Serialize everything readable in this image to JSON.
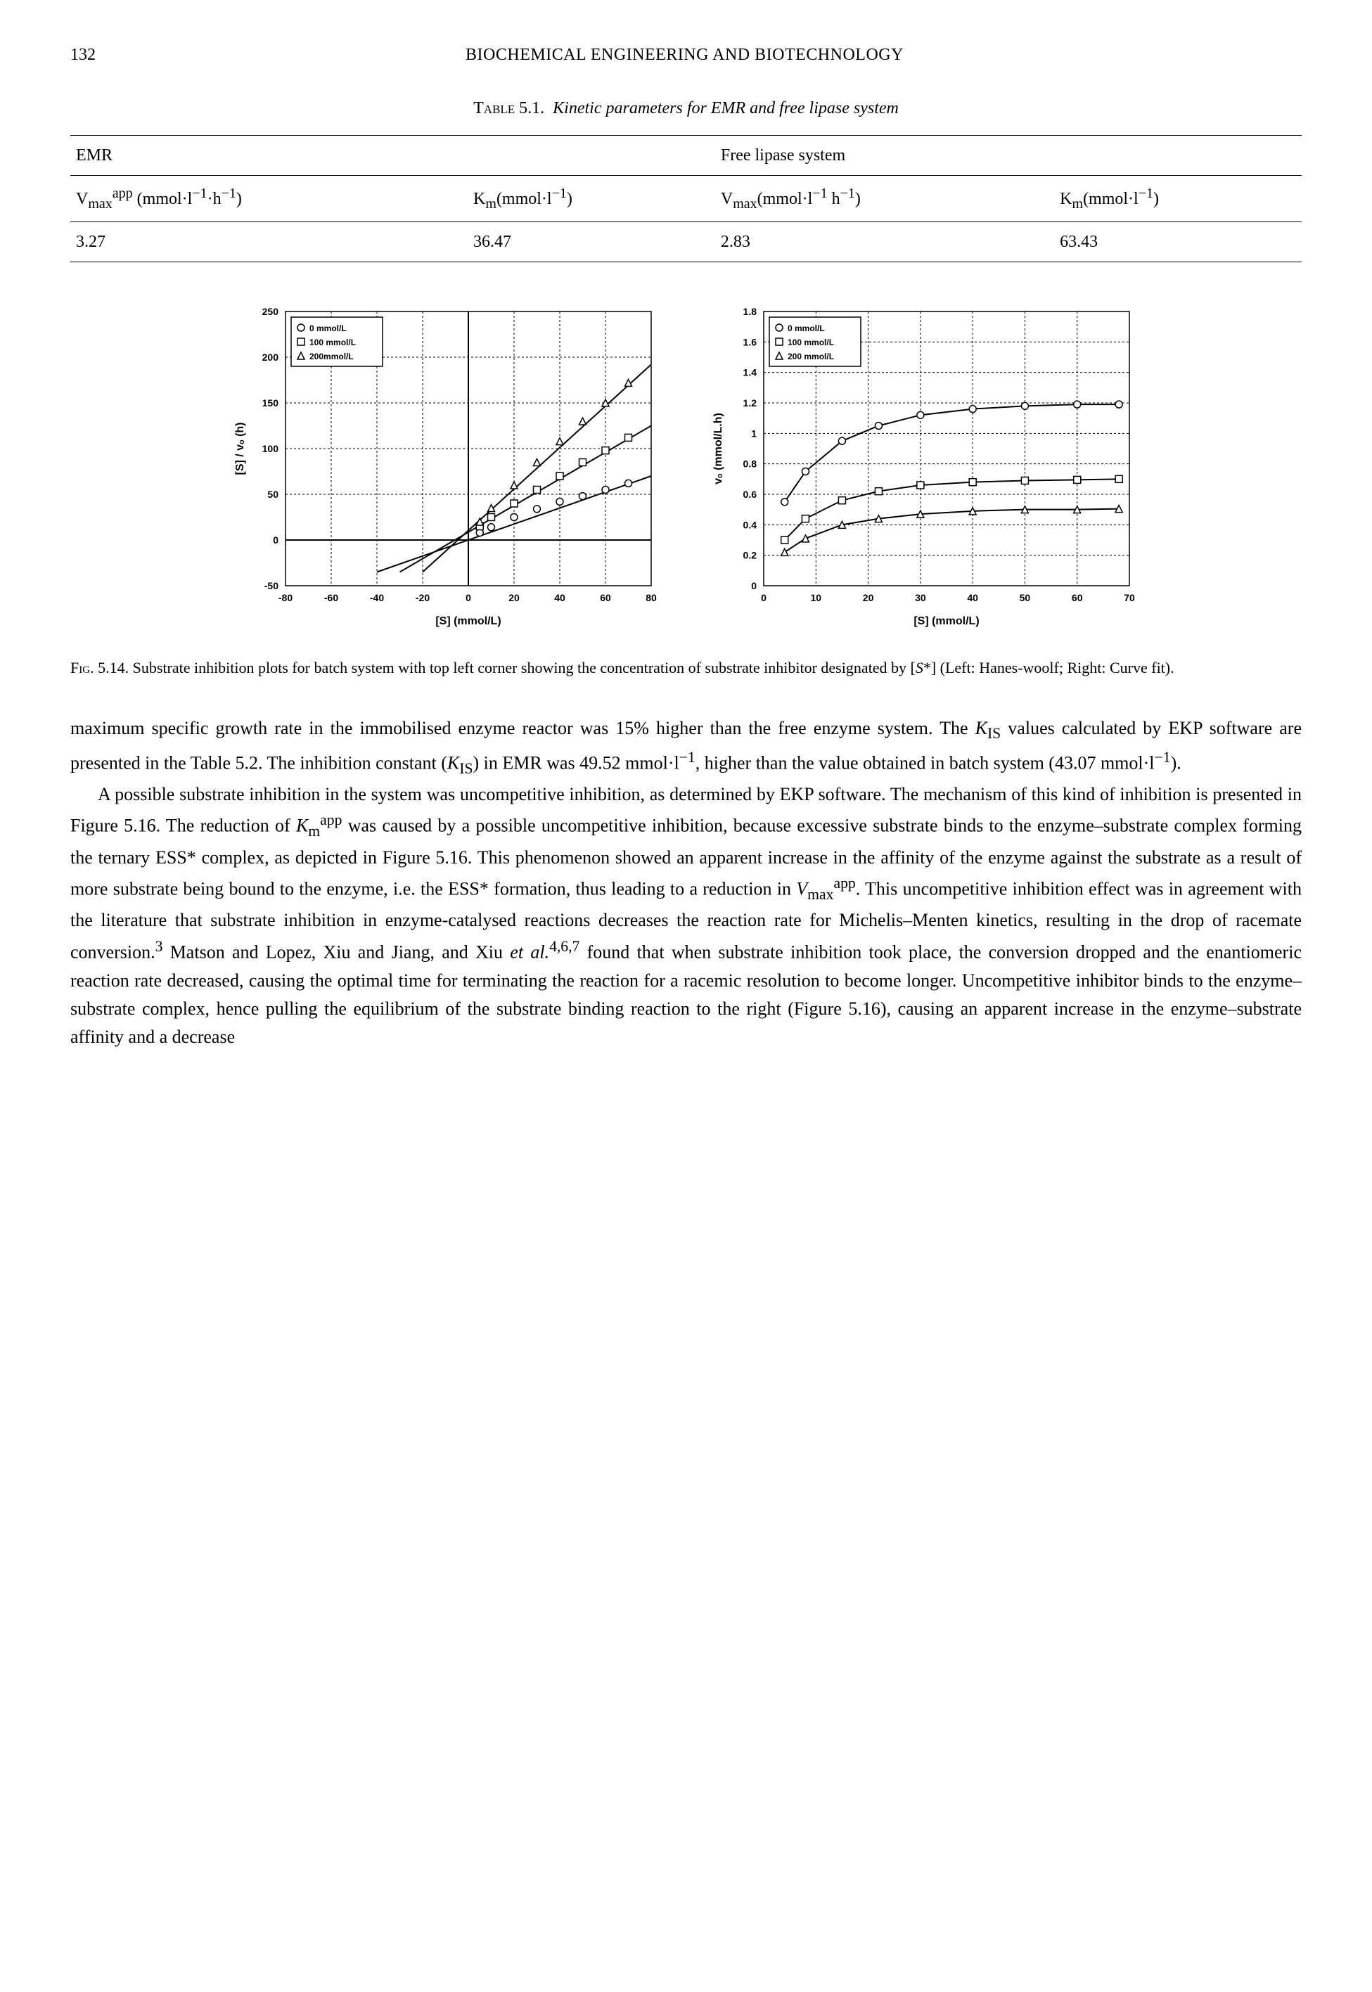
{
  "page_number": "132",
  "running_title": "BIOCHEMICAL ENGINEERING AND BIOTECHNOLOGY",
  "table": {
    "caption_prefix": "Table 5.1.",
    "caption_text": "Kinetic parameters for EMR and free lipase system",
    "group_headers": [
      "EMR",
      "Free lipase system"
    ],
    "col_headers_html": [
      "V<sub>max</sub><sup>app</sup> (mmol·l<sup>−1</sup>·h<sup>−1</sup>)",
      "K<sub>m</sub>(mmol·l<sup>−1</sup>)",
      "V<sub>max</sub>(mmol·l<sup>−1</sup> h<sup>−1</sup>)",
      "K<sub>m</sub>(mmol·l<sup>−1</sup>)"
    ],
    "data_row": [
      "3.27",
      "36.47",
      "2.83",
      "63.43"
    ]
  },
  "figure_caption_html": "F<span style='font-variant:small-caps'>ig</span>. 5.14.  Substrate inhibition plots for batch system with top left corner showing the concentration of substrate inhibitor designated by [<i>S</i>*] (Left: Hanes-woolf; Right: Curve fit).",
  "left_chart": {
    "type": "scatter-line",
    "xlabel": "[S] (mmol/L)",
    "ylabel": "[S] / vₒ (h)",
    "xlim": [
      -80,
      80
    ],
    "xtick_step": 20,
    "ylim": [
      -50,
      250
    ],
    "ytick_step": 50,
    "grid_color": "#000000",
    "grid_dash": "3,3",
    "background_color": "#ffffff",
    "fontsize_axis": 14,
    "fontsize_legend": 12,
    "legend_items": [
      {
        "marker": "circle",
        "label": "0 mmol/L"
      },
      {
        "marker": "square",
        "label": "100 mmol/L"
      },
      {
        "marker": "triangle",
        "label": "200mmol/L"
      }
    ],
    "series": [
      {
        "marker": "circle",
        "fill": "#ffffff",
        "stroke": "#000000",
        "line": "#000000",
        "points": [
          [
            5,
            8
          ],
          [
            10,
            14
          ],
          [
            20,
            25
          ],
          [
            30,
            34
          ],
          [
            40,
            42
          ],
          [
            50,
            48
          ],
          [
            60,
            55
          ],
          [
            70,
            62
          ]
        ],
        "fit": [
          [
            -40,
            -35
          ],
          [
            80,
            70
          ]
        ]
      },
      {
        "marker": "square",
        "fill": "#ffffff",
        "stroke": "#000000",
        "line": "#000000",
        "points": [
          [
            5,
            15
          ],
          [
            10,
            25
          ],
          [
            20,
            40
          ],
          [
            30,
            55
          ],
          [
            40,
            70
          ],
          [
            50,
            85
          ],
          [
            60,
            98
          ],
          [
            70,
            112
          ]
        ],
        "fit": [
          [
            -30,
            -35
          ],
          [
            80,
            125
          ]
        ]
      },
      {
        "marker": "triangle",
        "fill": "#ffffff",
        "stroke": "#000000",
        "line": "#000000",
        "points": [
          [
            5,
            20
          ],
          [
            10,
            35
          ],
          [
            20,
            60
          ],
          [
            30,
            85
          ],
          [
            40,
            108
          ],
          [
            50,
            130
          ],
          [
            60,
            150
          ],
          [
            70,
            172
          ]
        ],
        "fit": [
          [
            -20,
            -35
          ],
          [
            80,
            192
          ]
        ]
      }
    ]
  },
  "right_chart": {
    "type": "scatter-line",
    "xlabel": "[S] (mmol/L)",
    "ylabel": "vₒ (mmol/L.h)",
    "xlim": [
      0,
      70
    ],
    "xtick_step": 10,
    "ylim": [
      0,
      1.8
    ],
    "ytick_step": 0.2,
    "grid_color": "#000000",
    "grid_dash": "3,3",
    "background_color": "#ffffff",
    "fontsize_axis": 14,
    "fontsize_legend": 12,
    "legend_items": [
      {
        "marker": "circle",
        "label": "0 mmol/L"
      },
      {
        "marker": "square",
        "label": "100 mmol/L"
      },
      {
        "marker": "triangle",
        "label": "200 mmol/L"
      }
    ],
    "series": [
      {
        "marker": "circle",
        "fill": "#ffffff",
        "stroke": "#000000",
        "line": "#000000",
        "points": [
          [
            4,
            0.55
          ],
          [
            8,
            0.75
          ],
          [
            15,
            0.95
          ],
          [
            22,
            1.05
          ],
          [
            30,
            1.12
          ],
          [
            40,
            1.16
          ],
          [
            50,
            1.18
          ],
          [
            60,
            1.19
          ],
          [
            68,
            1.19
          ]
        ]
      },
      {
        "marker": "square",
        "fill": "#ffffff",
        "stroke": "#000000",
        "line": "#000000",
        "points": [
          [
            4,
            0.3
          ],
          [
            8,
            0.44
          ],
          [
            15,
            0.56
          ],
          [
            22,
            0.62
          ],
          [
            30,
            0.66
          ],
          [
            40,
            0.68
          ],
          [
            50,
            0.69
          ],
          [
            60,
            0.695
          ],
          [
            68,
            0.7
          ]
        ]
      },
      {
        "marker": "triangle",
        "fill": "#ffffff",
        "stroke": "#000000",
        "line": "#000000",
        "points": [
          [
            4,
            0.22
          ],
          [
            8,
            0.31
          ],
          [
            15,
            0.4
          ],
          [
            22,
            0.44
          ],
          [
            30,
            0.47
          ],
          [
            40,
            0.49
          ],
          [
            50,
            0.5
          ],
          [
            60,
            0.5
          ],
          [
            68,
            0.505
          ]
        ]
      }
    ]
  },
  "body_paragraphs_html": [
    "maximum specific growth rate in the immobilised enzyme reactor was 15% higher than the free enzyme system. The <i>K</i><sub>IS</sub> values calculated by EKP software are presented in the Table 5.2. The inhibition constant (<i>K</i><sub>IS</sub>) in EMR was 49.52 mmol·l<sup>−1</sup>, higher than the value obtained in batch system (43.07 mmol·l<sup>−1</sup>).",
    "A possible substrate inhibition in the system was uncompetitive inhibition, as determined by EKP software. The mechanism of this kind of inhibition is presented in Figure 5.16. The reduction of <i>K</i><sub>m</sub><sup>app</sup> was caused by a possible uncompetitive inhibition, because excessive substrate binds to the enzyme–substrate complex forming the ternary ESS* complex, as depicted in Figure 5.16. This phenomenon showed an apparent increase in the affinity of the enzyme against the substrate as a result of more substrate being bound to the enzyme, i.e. the ESS* formation, thus leading to a reduction in <i>V</i><sub>max</sub><sup>app</sup>. This uncompetitive inhibition effect was in agreement with the literature that substrate inhibition in enzyme-catalysed reactions decreases the reaction rate for Michelis–Menten kinetics, resulting in the drop of racemate conversion.<sup>3</sup> Matson and Lopez, Xiu and Jiang, and Xiu <i>et al.</i><sup>4,6,7</sup> found that when substrate inhibition took place, the conversion dropped and the enantiomeric reaction rate decreased, causing the optimal time for terminating the reaction for a racemic resolution to become longer. Uncompetitive inhibitor binds to the enzyme–substrate complex, hence pulling the equilibrium of the substrate binding reaction to the right (Figure 5.16), causing an apparent increase in the enzyme–substrate affinity and a decrease"
  ]
}
